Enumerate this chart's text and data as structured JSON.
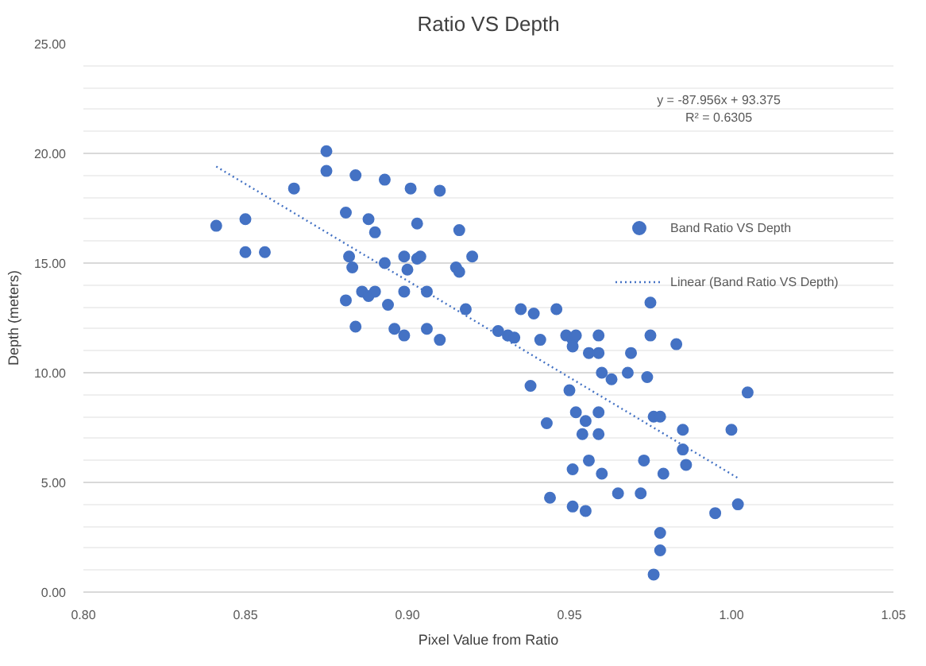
{
  "chart_data": {
    "type": "scatter",
    "title": "Ratio VS Depth",
    "xlabel": "Pixel Value from Ratio",
    "ylabel": "Depth (meters)",
    "annotations": [
      "y = -87.956x + 93.375",
      "R² = 0.6305"
    ],
    "xlim": [
      0.8,
      1.05
    ],
    "ylim": [
      0,
      25
    ],
    "xticks": [
      {
        "value": 0.8,
        "label": "0.80"
      },
      {
        "value": 0.85,
        "label": "0.85"
      },
      {
        "value": 0.9,
        "label": "0.90"
      },
      {
        "value": 0.95,
        "label": "0.95"
      },
      {
        "value": 1.0,
        "label": "1.00"
      },
      {
        "value": 1.05,
        "label": "1.05"
      }
    ],
    "yticks": [
      {
        "value": 0,
        "label": "0.00"
      },
      {
        "value": 5,
        "label": "5.00"
      },
      {
        "value": 10,
        "label": "10.00"
      },
      {
        "value": 15,
        "label": "15.00"
      },
      {
        "value": 20,
        "label": "20.00"
      },
      {
        "value": 25,
        "label": "25.00"
      }
    ],
    "grid": "y",
    "legend": "right",
    "series": [
      {
        "name": "Band Ratio VS Depth",
        "color": "#4472c4",
        "marker": "circle",
        "x": [
          0.841,
          0.85,
          0.85,
          0.856,
          0.865,
          0.875,
          0.875,
          0.884,
          0.893,
          0.901,
          0.91,
          0.881,
          0.888,
          0.89,
          0.903,
          0.916,
          0.92,
          0.882,
          0.883,
          0.893,
          0.899,
          0.903,
          0.904,
          0.915,
          0.916,
          0.9,
          0.886,
          0.888,
          0.89,
          0.881,
          0.899,
          0.906,
          0.894,
          0.884,
          0.896,
          0.899,
          0.906,
          0.91,
          0.918,
          0.928,
          0.931,
          0.933,
          0.935,
          0.939,
          0.946,
          0.941,
          0.949,
          0.951,
          0.952,
          0.951,
          0.959,
          0.956,
          0.959,
          0.975,
          0.975,
          0.983,
          0.969,
          0.96,
          0.963,
          0.968,
          0.974,
          0.938,
          0.95,
          0.943,
          0.952,
          0.955,
          0.959,
          0.954,
          0.959,
          0.976,
          0.978,
          0.985,
          1.0,
          1.005,
          0.985,
          0.986,
          0.951,
          0.956,
          0.96,
          0.973,
          0.979,
          0.944,
          0.951,
          0.955,
          0.965,
          0.972,
          0.995,
          1.002,
          0.978,
          0.978,
          0.976
        ],
        "values": [
          16.7,
          17.0,
          15.5,
          15.5,
          18.4,
          20.1,
          19.2,
          19.0,
          18.8,
          18.4,
          18.3,
          17.3,
          17.0,
          16.4,
          16.8,
          16.5,
          15.3,
          15.3,
          14.8,
          15.0,
          15.3,
          15.2,
          15.3,
          14.8,
          14.6,
          14.7,
          13.7,
          13.5,
          13.7,
          13.3,
          13.7,
          13.7,
          13.1,
          12.1,
          12.0,
          11.7,
          12.0,
          11.5,
          12.9,
          11.9,
          11.7,
          11.6,
          12.9,
          12.7,
          12.9,
          11.5,
          11.7,
          11.5,
          11.7,
          11.2,
          11.7,
          10.9,
          10.9,
          13.2,
          11.7,
          11.3,
          10.9,
          10.0,
          9.7,
          10.0,
          9.8,
          9.4,
          9.2,
          7.7,
          8.2,
          7.8,
          8.2,
          7.2,
          7.2,
          8.0,
          8.0,
          7.4,
          7.4,
          9.1,
          6.5,
          5.8,
          5.6,
          6.0,
          5.4,
          6.0,
          5.4,
          4.3,
          3.9,
          3.7,
          4.5,
          4.5,
          3.6,
          4.0,
          2.7,
          1.9,
          0.8
        ]
      },
      {
        "name": "Linear (Band Ratio VS Depth)",
        "color": "#4472c4",
        "type": "line",
        "line_style": "dotted",
        "marker": "none",
        "x": [
          0.841,
          1.002
        ],
        "values": [
          19.4,
          5.2
        ]
      }
    ]
  }
}
